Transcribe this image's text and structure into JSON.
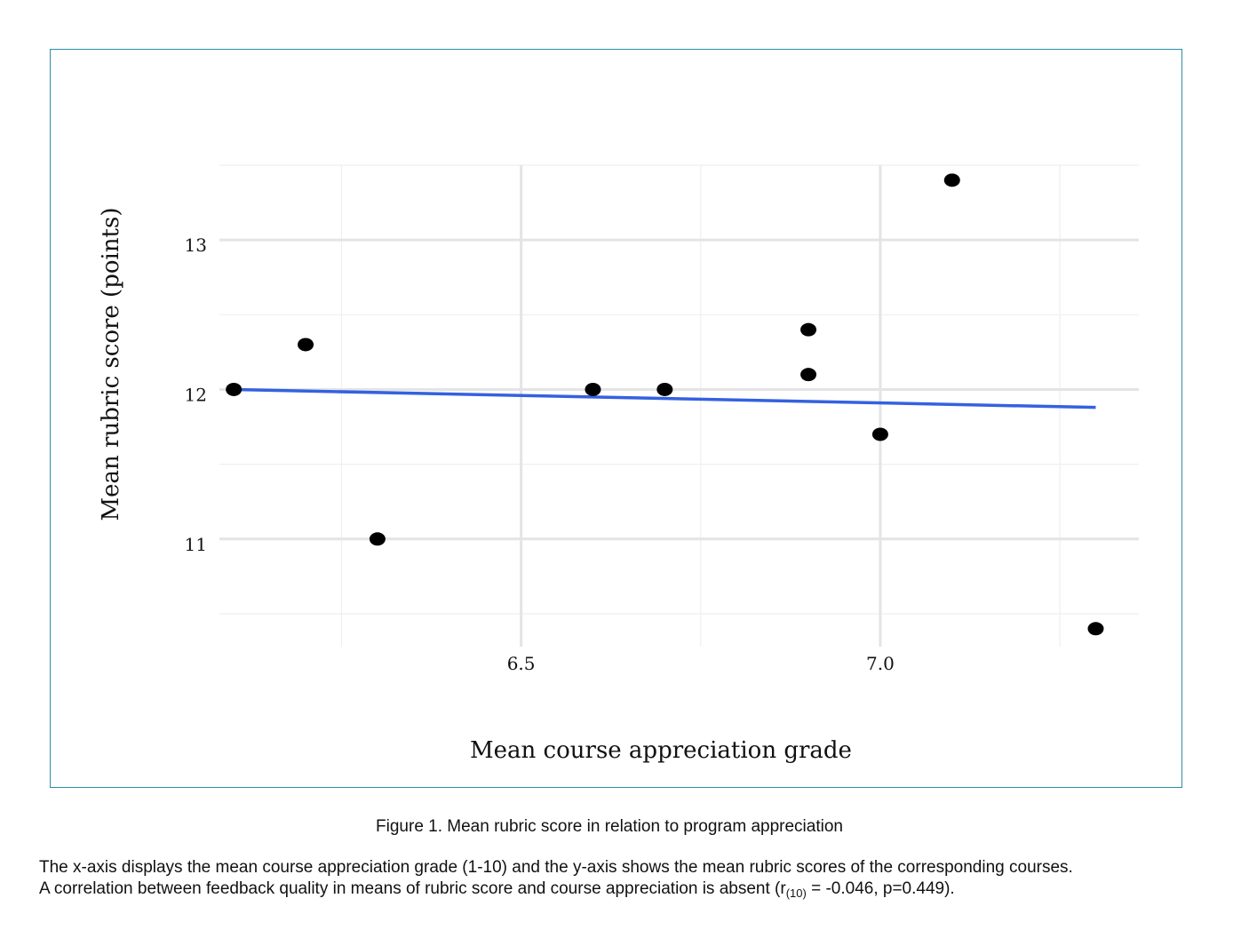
{
  "chart_data": {
    "type": "scatter",
    "title": "",
    "xlabel": "Mean course appreciation grade",
    "ylabel": "Mean rubric score (points)",
    "xlim": [
      6.08,
      7.36
    ],
    "ylim": [
      10.28,
      13.5
    ],
    "x_ticks": [
      6.5,
      7.0
    ],
    "x_tick_labels": [
      "6.5",
      "7.0"
    ],
    "y_ticks": [
      11,
      12,
      13
    ],
    "y_tick_labels": [
      "11",
      "12",
      "13"
    ],
    "grid": true,
    "points": [
      {
        "x": 6.1,
        "y": 12.0
      },
      {
        "x": 6.2,
        "y": 12.3
      },
      {
        "x": 6.3,
        "y": 11.0
      },
      {
        "x": 6.6,
        "y": 12.0
      },
      {
        "x": 6.7,
        "y": 12.0
      },
      {
        "x": 6.9,
        "y": 12.4
      },
      {
        "x": 6.9,
        "y": 12.1
      },
      {
        "x": 7.0,
        "y": 11.7
      },
      {
        "x": 7.1,
        "y": 13.4
      },
      {
        "x": 7.3,
        "y": 10.4
      }
    ],
    "trend_line": {
      "x": [
        6.1,
        7.3
      ],
      "y": [
        12.0,
        11.88
      ],
      "color": "#3461e0"
    },
    "point_color": "#000000",
    "frame_color": "#2a8fa8"
  },
  "caption": {
    "title": "Figure 1. Mean rubric score in relation to program appreciation",
    "line1": "The x-axis displays the mean course appreciation grade (1-10) and the y-axis shows the mean rubric scores of the corresponding courses.",
    "line2_prefix": "A correlation between feedback quality in means of rubric score and course appreciation is absent (r",
    "line2_sub": "(10)",
    "line2_suffix": " = -0.046, p=0.449)."
  }
}
